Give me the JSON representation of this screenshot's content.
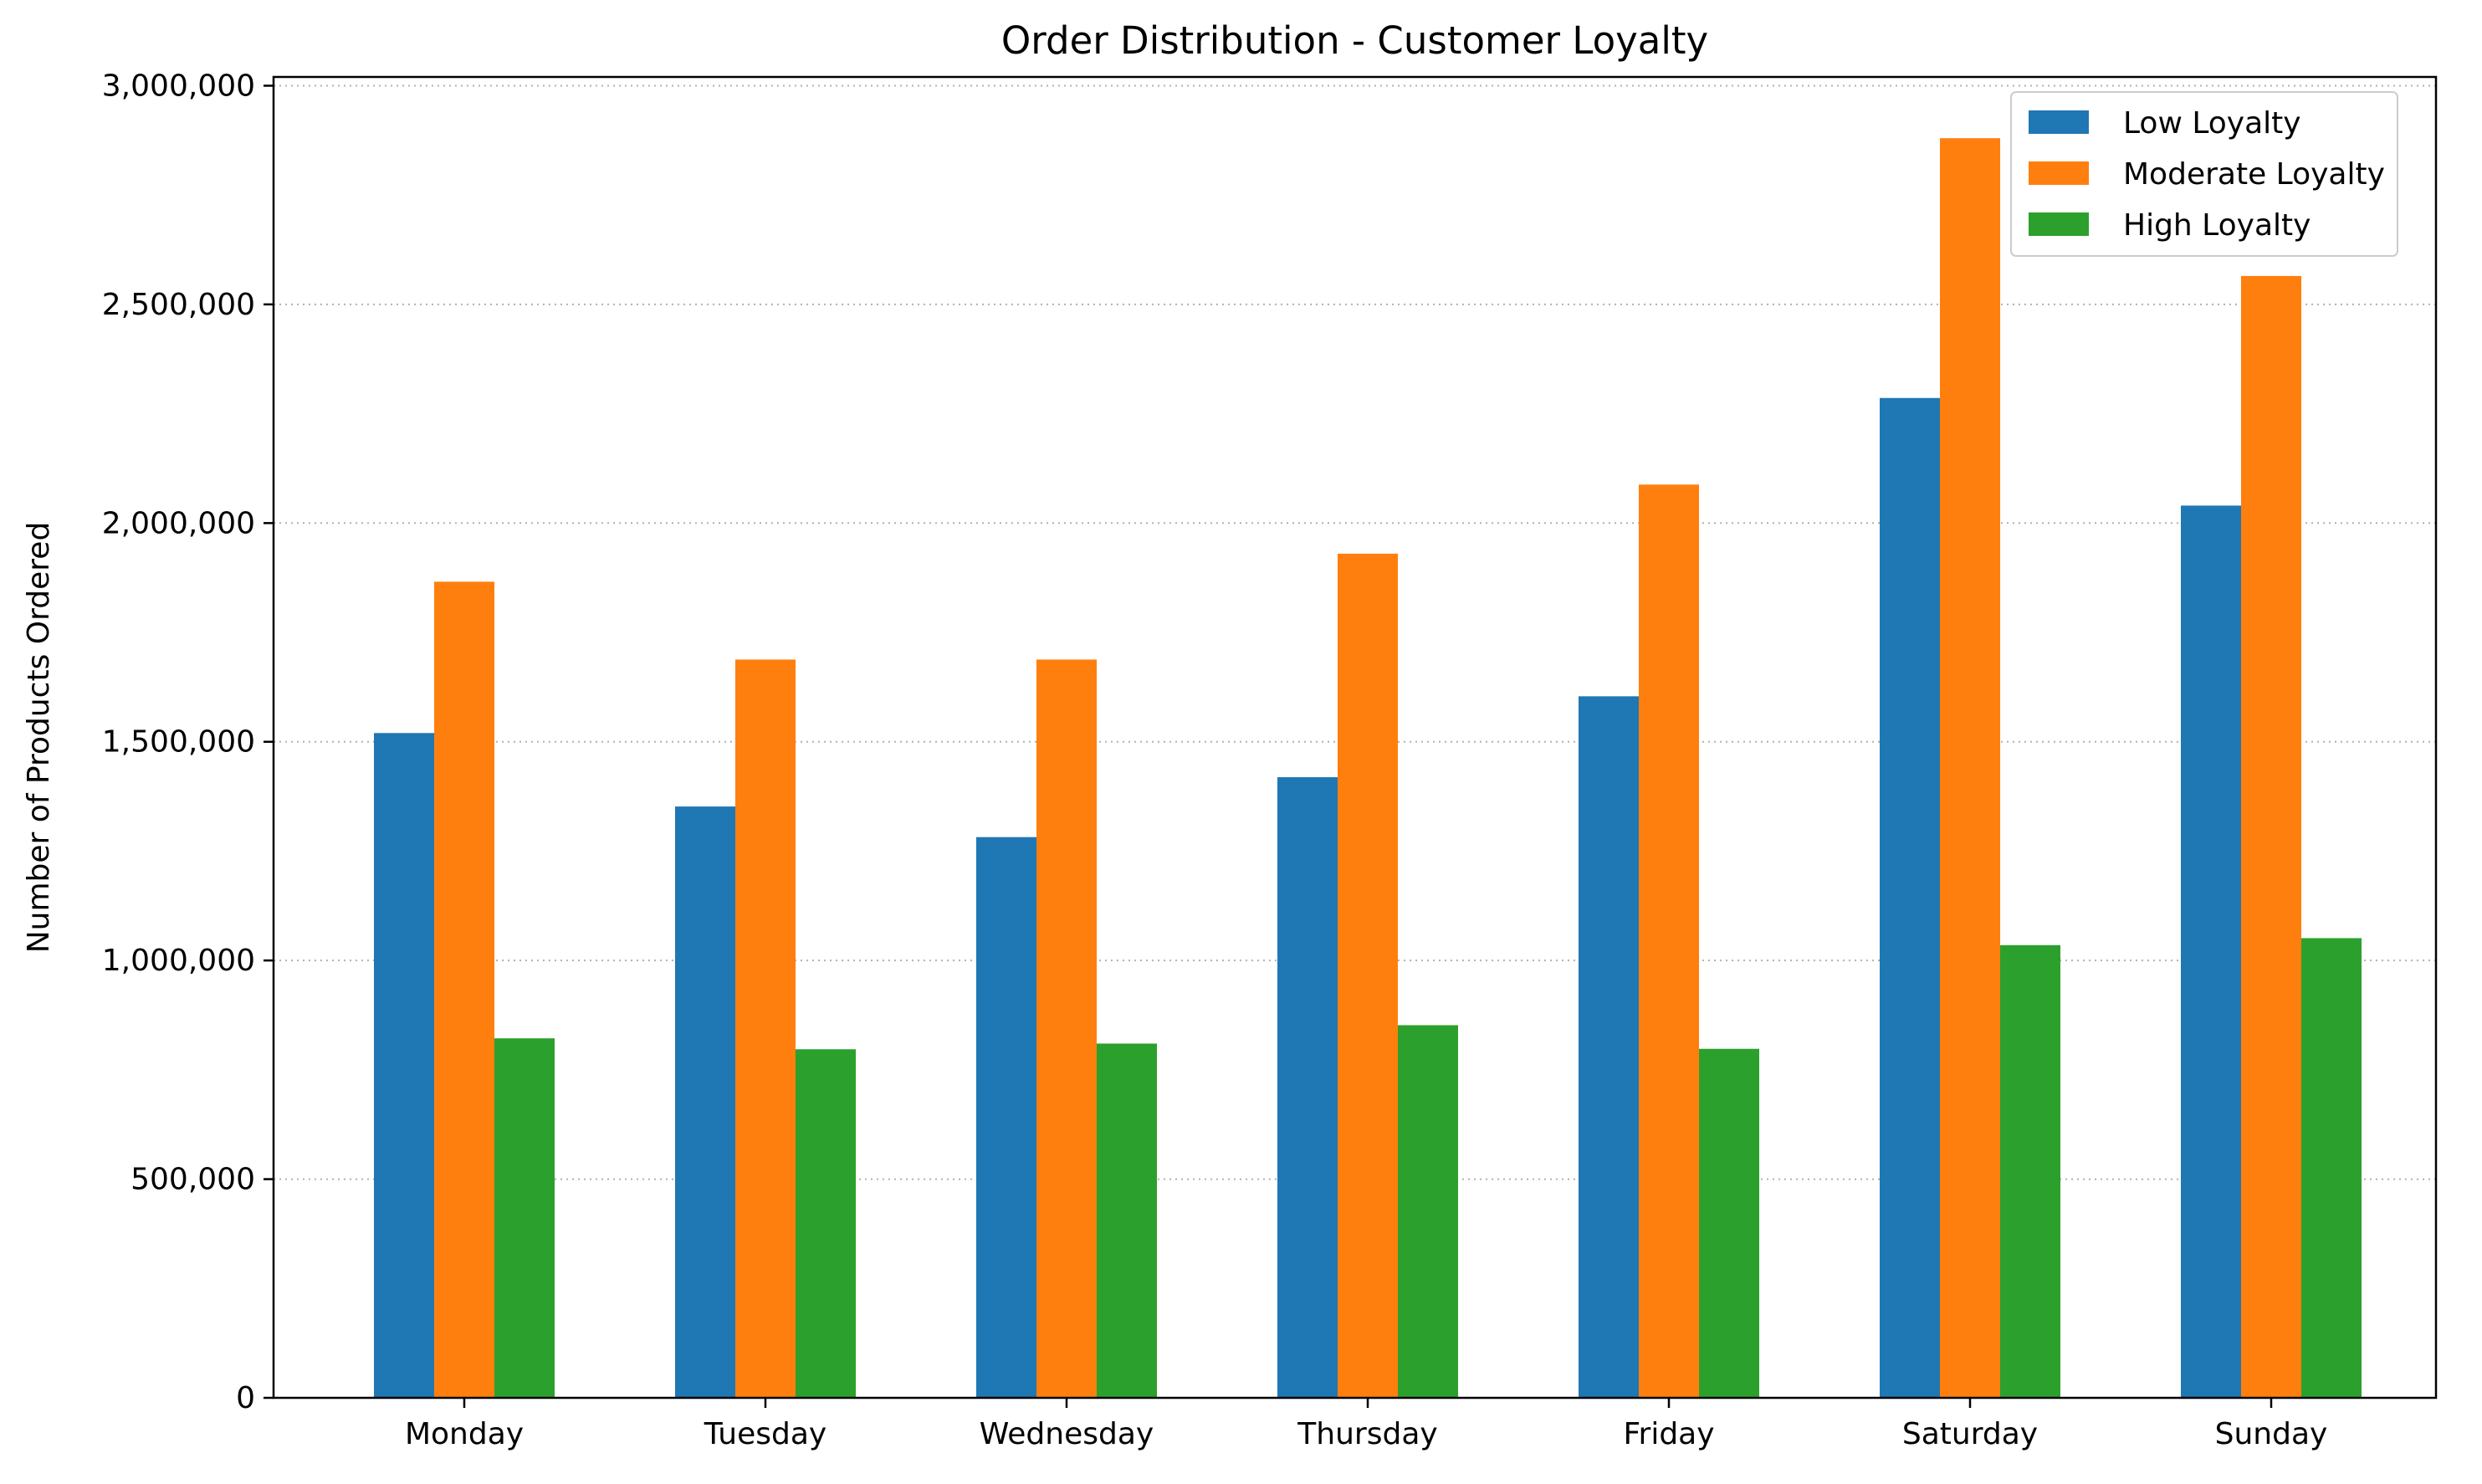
{
  "chart_data": {
    "type": "bar",
    "title": "Order Distribution - Customer Loyalty",
    "xlabel": "",
    "ylabel": "Number of Products Ordered",
    "categories": [
      "Monday",
      "Tuesday",
      "Wednesday",
      "Thursday",
      "Friday",
      "Saturday",
      "Sunday"
    ],
    "series": [
      {
        "name": "Low Loyalty",
        "color": "#1f77b4",
        "values": [
          1520000,
          1352000,
          1282000,
          1419000,
          1604000,
          2286000,
          2040000
        ]
      },
      {
        "name": "Moderate Loyalty",
        "color": "#ff7f0e",
        "values": [
          1866000,
          1688000,
          1688000,
          1930000,
          2088000,
          2880000,
          2565000
        ]
      },
      {
        "name": "High Loyalty",
        "color": "#2ca02c",
        "values": [
          822000,
          797000,
          810000,
          852000,
          798000,
          1035000,
          1051000
        ]
      }
    ],
    "ylim": [
      0,
      3020000
    ],
    "yticks": [
      0,
      500000,
      1000000,
      1500000,
      2000000,
      2500000,
      3000000
    ],
    "ytick_labels": [
      "0",
      "500,000",
      "1,000,000",
      "1,500,000",
      "2,000,000",
      "2,500,000",
      "3,000,000"
    ],
    "grid": "y-dotted",
    "legend_position": "top-right"
  }
}
